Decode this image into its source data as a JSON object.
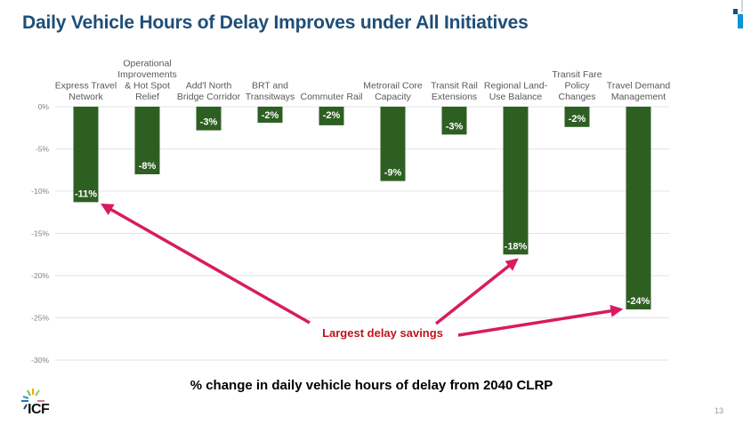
{
  "slide": {
    "title": "Daily Vehicle Hours of Delay Improves under All Initiatives",
    "page_number": "13",
    "logo_text": "ICF"
  },
  "chart_data": {
    "type": "bar",
    "title": "Daily Vehicle Hours of Delay Improves under All Initiatives",
    "xlabel": "% change in daily vehicle hours of delay from 2040 CLRP",
    "ylabel": "",
    "categories": [
      [
        "Express Travel",
        "Network"
      ],
      [
        "Operational",
        "Improvements",
        "& Hot Spot",
        "Relief"
      ],
      [
        "Add'l North",
        "Bridge Corridor"
      ],
      [
        "BRT and",
        "Transitways"
      ],
      [
        "Commuter Rail"
      ],
      [
        "Metrorail Core",
        "Capacity"
      ],
      [
        "Transit Rail",
        "Extensions"
      ],
      [
        "Regional Land-",
        "Use Balance"
      ],
      [
        "Transit Fare",
        "Policy",
        "Changes"
      ],
      [
        "Travel Demand",
        "Management"
      ]
    ],
    "values": [
      -11.3,
      -8.0,
      -2.8,
      -1.9,
      -2.2,
      -8.8,
      -3.3,
      -17.5,
      -2.4,
      -24.0
    ],
    "data_labels": [
      "-11%",
      "-8%",
      "-3%",
      "-2%",
      "-2%",
      "-9%",
      "-3%",
      "-18%",
      "-2%",
      "-24%"
    ],
    "ylim": [
      -30,
      0
    ],
    "yticks": [
      0,
      -5,
      -10,
      -15,
      -20,
      -25,
      -30
    ],
    "ytick_labels": [
      "0%",
      "-5%",
      "-10%",
      "-15%",
      "-20%",
      "-25%",
      "-30%"
    ],
    "grid": true,
    "bar_color": "#2e5f22",
    "annotation": {
      "text": "Largest delay savings",
      "color": "#c0141c",
      "arrow_color": "#d81b60",
      "points_to": [
        "Express Travel Network",
        "Regional Land-Use Balance",
        "Travel Demand Management"
      ]
    }
  }
}
